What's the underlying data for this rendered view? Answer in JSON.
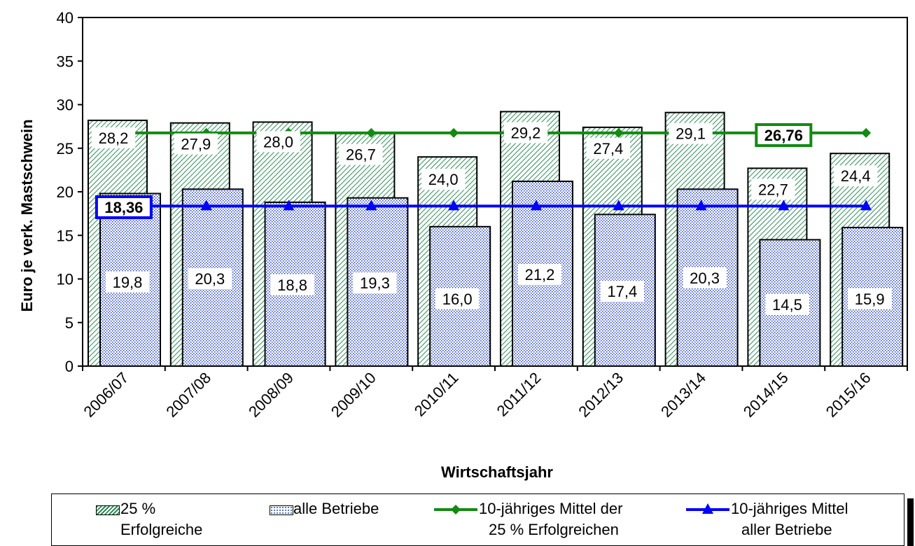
{
  "chart_data": {
    "type": "bar",
    "categories": [
      "2006/07",
      "2007/08",
      "2008/09",
      "2009/10",
      "2010/11",
      "2011/12",
      "2012/13",
      "2013/14",
      "2014/15",
      "2015/16"
    ],
    "series": [
      {
        "name": "25 % Erfolgreiche",
        "type": "bar",
        "values": [
          28.2,
          27.9,
          28.0,
          26.7,
          24.0,
          29.2,
          27.4,
          29.1,
          22.7,
          24.4
        ],
        "labels": [
          "28,2",
          "27,9",
          "28,0",
          "26,7",
          "24,0",
          "29,2",
          "27,4",
          "29,1",
          "22,7",
          "24,4"
        ],
        "color": "#2e8b57",
        "pattern": "diagonal-hatch"
      },
      {
        "name": "alle Betriebe",
        "type": "bar",
        "values": [
          19.8,
          20.3,
          18.8,
          19.3,
          16.0,
          21.2,
          17.4,
          20.3,
          14.5,
          15.9
        ],
        "labels": [
          "19,8",
          "20,3",
          "18,8",
          "19,3",
          "16,0",
          "21,2",
          "17,4",
          "20,3",
          "14,5",
          "15,9"
        ],
        "color": "#2040c0",
        "pattern": "dots"
      },
      {
        "name": "10-jähriges Mittel der 25 % Erfolgreichen",
        "type": "line",
        "values": [
          26.76,
          26.76,
          26.76,
          26.76,
          26.76,
          26.76,
          26.76,
          26.76,
          26.76,
          26.76
        ],
        "marker": "diamond",
        "color": "#138a13"
      },
      {
        "name": "10-jähriges Mittel aller Betriebe",
        "type": "line",
        "values": [
          18.36,
          18.36,
          18.36,
          18.36,
          18.36,
          18.36,
          18.36,
          18.36,
          18.36,
          18.36
        ],
        "marker": "triangle",
        "color": "#0000ff"
      }
    ],
    "callouts": [
      {
        "series": "10-jähriges Mittel der 25 % Erfolgreichen",
        "text": "26,76",
        "category": "2014/15"
      },
      {
        "series": "10-jähriges Mittel aller Betriebe",
        "text": "18,36",
        "category": "2006/07"
      }
    ],
    "title": "",
    "xlabel": "Wirtschaftsjahr",
    "ylabel": "Euro je verk. Mastschwein",
    "ylim": [
      0,
      40
    ],
    "yticks": [
      "0",
      "5",
      "10",
      "15",
      "20",
      "25",
      "30",
      "35",
      "40"
    ],
    "grid": false,
    "legend_position": "bottom"
  },
  "legend": {
    "item1": {
      "line1": "25 %",
      "line2": "Erfolgreiche"
    },
    "item2": {
      "line1": "alle Betriebe"
    },
    "item3": {
      "line1": "10-jähriges Mittel der",
      "line2": "25 % Erfolgreichen"
    },
    "item4": {
      "line1": "10-jähriges Mittel",
      "line2": "aller Betriebe"
    }
  }
}
